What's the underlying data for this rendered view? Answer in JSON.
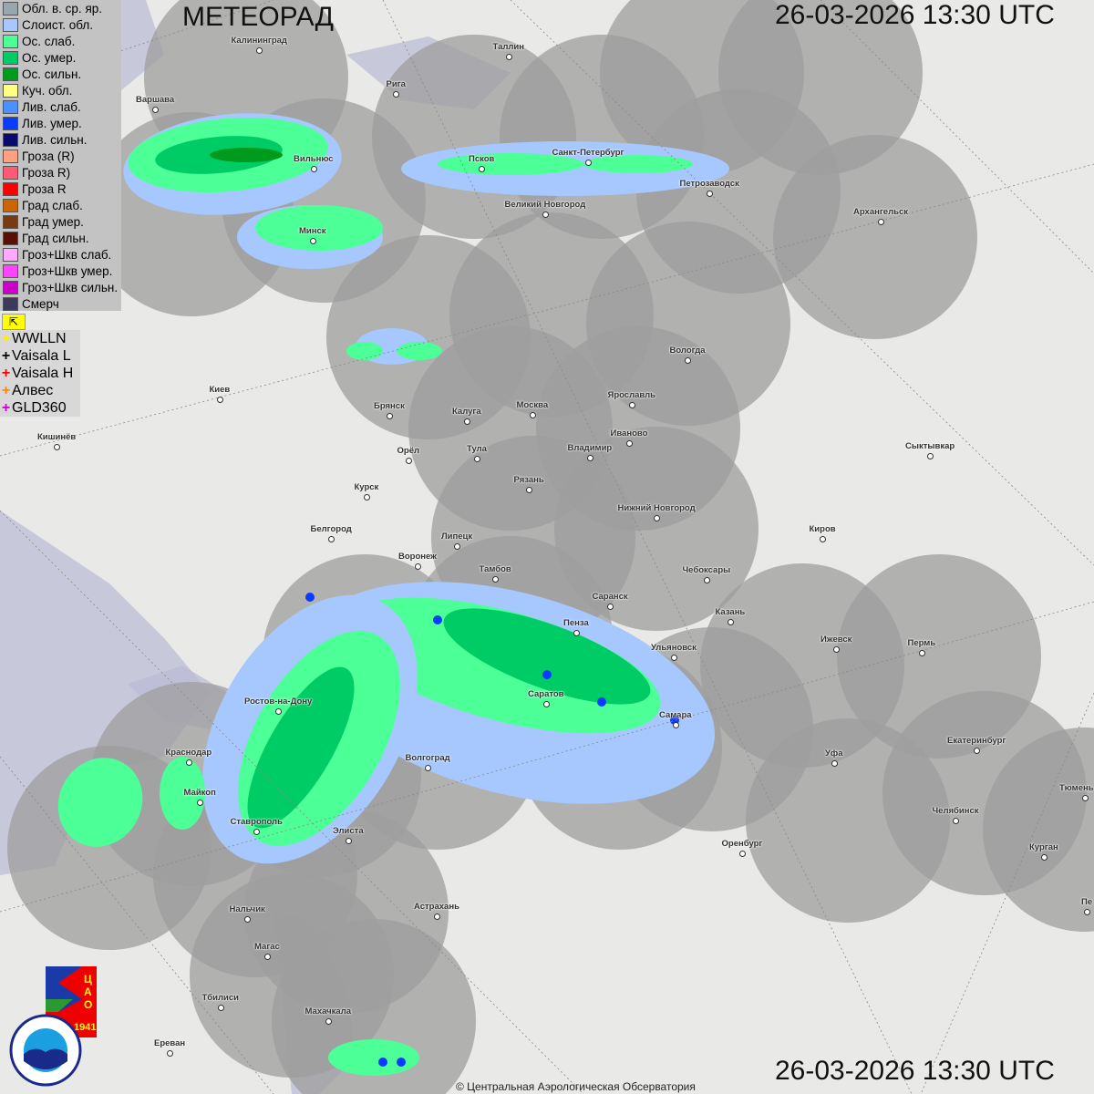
{
  "header": {
    "title": "МЕТЕОРАД",
    "datetime_top": "26-03-2026  13:30 UTC",
    "datetime_bottom": "26-03-2026  13:30 UTC"
  },
  "legend": [
    {
      "label": "Обл. в. ср. яр.",
      "color": "#9aa6ad"
    },
    {
      "label": "Слоист. обл.",
      "color": "#a6c8ff"
    },
    {
      "label": "Ос. слаб.",
      "color": "#4cff96"
    },
    {
      "label": "Ос. умер.",
      "color": "#00cc66"
    },
    {
      "label": "Ос. сильн.",
      "color": "#009a1c"
    },
    {
      "label": "Куч. обл.",
      "color": "#ffff80"
    },
    {
      "label": "Лив. слаб.",
      "color": "#4a90ff"
    },
    {
      "label": "Лив. умер.",
      "color": "#0a3cff"
    },
    {
      "label": "Лив. сильн.",
      "color": "#0a0a6e"
    },
    {
      "label": "Гроза (R)",
      "color": "#ffa080"
    },
    {
      "label": "Гроза R)",
      "color": "#ff5a78"
    },
    {
      "label": "Гроза R",
      "color": "#ff0000"
    },
    {
      "label": "Град слаб.",
      "color": "#cc6600"
    },
    {
      "label": "Град умер.",
      "color": "#7a3a10"
    },
    {
      "label": "Град сильн.",
      "color": "#5a0f05"
    },
    {
      "label": "Гроз+Шкв слаб.",
      "color": "#ffaaff"
    },
    {
      "label": "Гроз+Шкв умер.",
      "color": "#ff44ff"
    },
    {
      "label": "Гроз+Шкв сильн.",
      "color": "#cc00cc"
    },
    {
      "label": "Смерч",
      "color": "#3a3a5a"
    }
  ],
  "lightning_networks": [
    {
      "label": "WWLLN",
      "color": "#ffee00"
    },
    {
      "label": "Vaisala L",
      "color": "#000000"
    },
    {
      "label": "Vaisala H",
      "color": "#ff0000"
    },
    {
      "label": "Алвес",
      "color": "#ff8800"
    },
    {
      "label": "GLD360",
      "color": "#cc00cc"
    }
  ],
  "cities": [
    "Калининград",
    "Таллин",
    "Рига",
    "Варшава",
    "Вильнюс",
    "Псков",
    "Санкт-Петербург",
    "Петрозаводск",
    "Великий Новгород",
    "Архангельск",
    "Минск",
    "Вологда",
    "Киев",
    "Брянск",
    "Калуга",
    "Москва",
    "Ярославль",
    "Иваново",
    "Владимир",
    "Сыктывкар",
    "Кишинёв",
    "Орёл",
    "Тула",
    "Рязань",
    "Курск",
    "Нижний Новгород",
    "Белгород",
    "Липецк",
    "Киров",
    "Воронеж",
    "Тамбов",
    "Чебоксары",
    "Саранск",
    "Казань",
    "Пенза",
    "Ижевск",
    "Пермь",
    "Ульяновск",
    "Ростов-на-Дону",
    "Саратов",
    "Самара",
    "Краснодар",
    "Уфа",
    "Екатеринбург",
    "Волгоград",
    "Майкоп",
    "Тюмень",
    "Челябинск",
    "Ставрополь",
    "Элиста",
    "Оренбург",
    "Курган",
    "Астрахань",
    "Нальчик",
    "Магас",
    "Тбилиси",
    "Махачкала",
    "Ереван",
    "Пе"
  ],
  "logos": {
    "cao": "ЦАО 1941",
    "roshydromet": "РОСГИДРОМЕТ ROSHYDROMET"
  },
  "copyright": "© Центральная Аэрологическая Обсерватория"
}
